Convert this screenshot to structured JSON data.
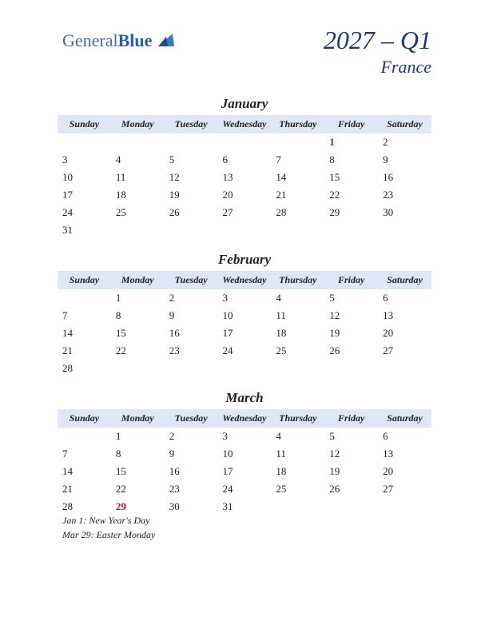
{
  "logo": {
    "part1": "General",
    "part2": "Blue"
  },
  "header": {
    "quarter": "2027 – Q1",
    "country": "France"
  },
  "weekdays": [
    "Sunday",
    "Monday",
    "Tuesday",
    "Wednesday",
    "Thursday",
    "Friday",
    "Saturday"
  ],
  "colors": {
    "header_bg": "#dde7f5",
    "title_color": "#1a3a7a",
    "holiday_color": "#b02020",
    "text_color": "#222222"
  },
  "months": [
    {
      "name": "January",
      "weeks": [
        [
          "",
          "",
          "",
          "",
          "",
          "1",
          "2"
        ],
        [
          "3",
          "4",
          "5",
          "6",
          "7",
          "8",
          "9"
        ],
        [
          "10",
          "11",
          "12",
          "13",
          "14",
          "15",
          "16"
        ],
        [
          "17",
          "18",
          "19",
          "20",
          "21",
          "22",
          "23"
        ],
        [
          "24",
          "25",
          "26",
          "27",
          "28",
          "29",
          "30"
        ],
        [
          "31",
          "",
          "",
          "",
          "",
          "",
          ""
        ]
      ],
      "holidays": [
        [
          0,
          5
        ]
      ]
    },
    {
      "name": "February",
      "weeks": [
        [
          "",
          "1",
          "2",
          "3",
          "4",
          "5",
          "6"
        ],
        [
          "7",
          "8",
          "9",
          "10",
          "11",
          "12",
          "13"
        ],
        [
          "14",
          "15",
          "16",
          "17",
          "18",
          "19",
          "20"
        ],
        [
          "21",
          "22",
          "23",
          "24",
          "25",
          "26",
          "27"
        ],
        [
          "28",
          "",
          "",
          "",
          "",
          "",
          ""
        ]
      ],
      "holidays": []
    },
    {
      "name": "March",
      "weeks": [
        [
          "",
          "1",
          "2",
          "3",
          "4",
          "5",
          "6"
        ],
        [
          "7",
          "8",
          "9",
          "10",
          "11",
          "12",
          "13"
        ],
        [
          "14",
          "15",
          "16",
          "17",
          "18",
          "19",
          "20"
        ],
        [
          "21",
          "22",
          "23",
          "24",
          "25",
          "26",
          "27"
        ],
        [
          "28",
          "29",
          "30",
          "31",
          "",
          "",
          ""
        ]
      ],
      "holidays": [
        [
          4,
          1
        ]
      ]
    }
  ],
  "holiday_notes": [
    "Jan 1: New Year's Day",
    "Mar 29: Easter Monday"
  ]
}
